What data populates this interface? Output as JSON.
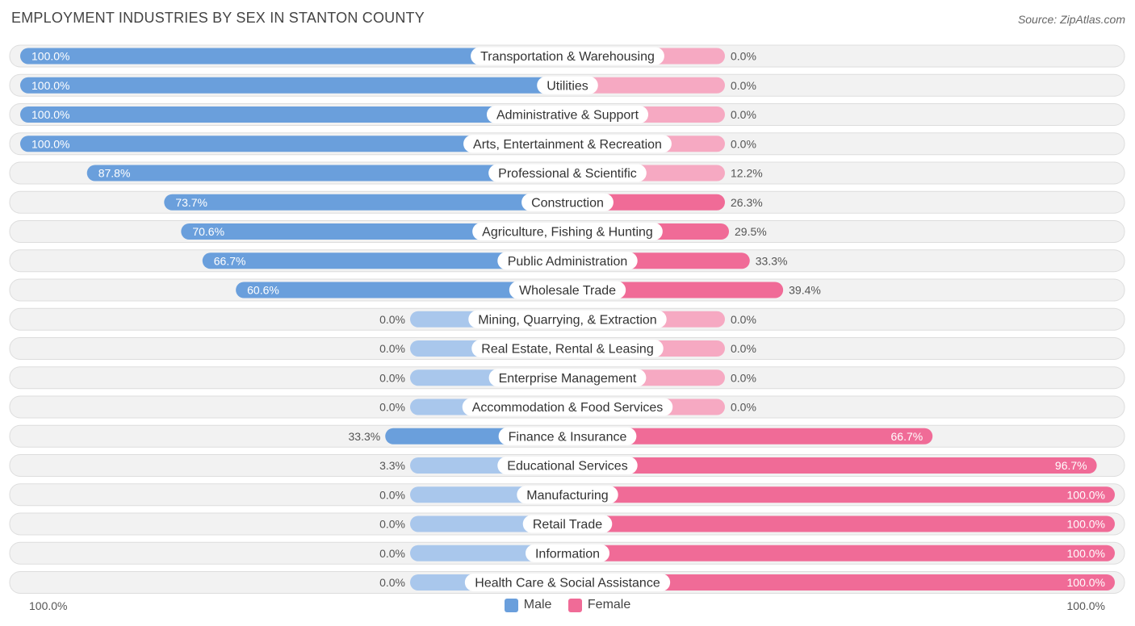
{
  "title": "EMPLOYMENT INDUSTRIES BY SEX IN STANTON COUNTY",
  "source": "Source: ZipAtlas.com",
  "colors": {
    "male_strong": "#6a9fdc",
    "male_light": "#a9c7ec",
    "female_strong": "#f06b97",
    "female_light": "#f6a9c2",
    "row_bg": "#f2f2f2",
    "row_border": "#dddddd"
  },
  "legend": {
    "male_label": "Male",
    "female_label": "Female"
  },
  "axis": {
    "left_label": "100.0%",
    "right_label": "100.0%"
  },
  "chart_data": {
    "type": "bar",
    "orientation": "horizontal-diverging",
    "title": "EMPLOYMENT INDUSTRIES BY SEX IN STANTON COUNTY",
    "xlim": [
      -100,
      100
    ],
    "categories": [
      "Transportation & Warehousing",
      "Utilities",
      "Administrative & Support",
      "Arts, Entertainment & Recreation",
      "Professional & Scientific",
      "Construction",
      "Agriculture, Fishing & Hunting",
      "Public Administration",
      "Wholesale Trade",
      "Mining, Quarrying, & Extraction",
      "Real Estate, Rental & Leasing",
      "Enterprise Management",
      "Accommodation & Food Services",
      "Finance & Insurance",
      "Educational Services",
      "Manufacturing",
      "Retail Trade",
      "Information",
      "Health Care & Social Assistance"
    ],
    "series": [
      {
        "name": "Male",
        "values": [
          100.0,
          100.0,
          100.0,
          100.0,
          87.8,
          73.7,
          70.6,
          66.7,
          60.6,
          0.0,
          0.0,
          0.0,
          0.0,
          33.3,
          3.3,
          0.0,
          0.0,
          0.0,
          0.0
        ],
        "labels": [
          "100.0%",
          "100.0%",
          "100.0%",
          "100.0%",
          "87.8%",
          "73.7%",
          "70.6%",
          "66.7%",
          "60.6%",
          "0.0%",
          "0.0%",
          "0.0%",
          "0.0%",
          "33.3%",
          "3.3%",
          "0.0%",
          "0.0%",
          "0.0%",
          "0.0%"
        ]
      },
      {
        "name": "Female",
        "values": [
          0.0,
          0.0,
          0.0,
          0.0,
          12.2,
          26.3,
          29.5,
          33.3,
          39.4,
          0.0,
          0.0,
          0.0,
          0.0,
          66.7,
          96.7,
          100.0,
          100.0,
          100.0,
          100.0
        ],
        "labels": [
          "0.0%",
          "0.0%",
          "0.0%",
          "0.0%",
          "12.2%",
          "26.3%",
          "29.5%",
          "33.3%",
          "39.4%",
          "0.0%",
          "0.0%",
          "0.0%",
          "0.0%",
          "66.7%",
          "96.7%",
          "100.0%",
          "100.0%",
          "100.0%",
          "100.0%"
        ]
      }
    ]
  }
}
